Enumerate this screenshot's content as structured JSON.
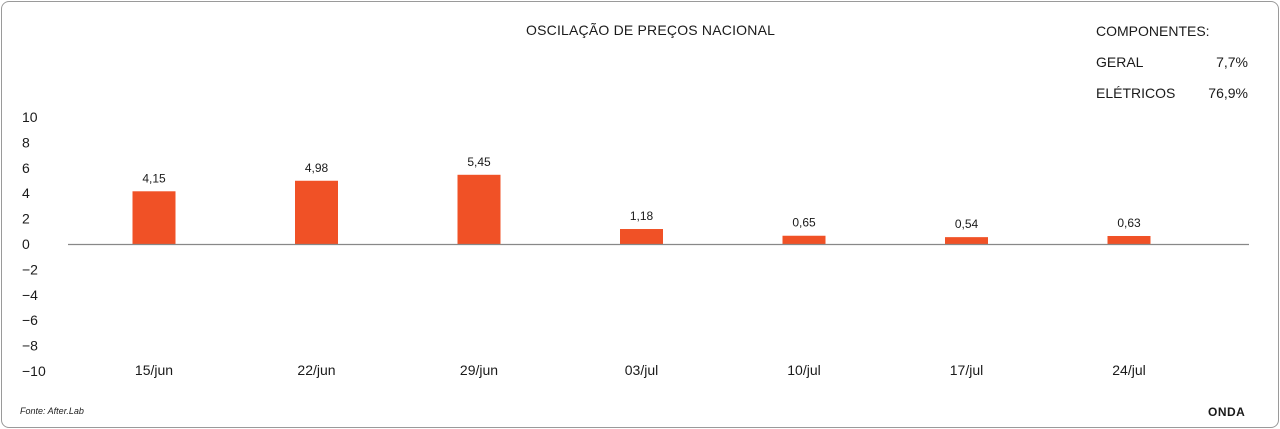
{
  "chart_data": {
    "type": "bar",
    "title": "OSCILAÇÃO DE PREÇOS NACIONAL",
    "categories": [
      "15/jun",
      "22/jun",
      "29/jun",
      "03/jul",
      "10/jul",
      "17/jul",
      "24/jul"
    ],
    "series": [
      {
        "values": [
          4.15,
          4.98,
          5.45,
          1.18,
          0.65,
          0.54,
          0.63
        ]
      }
    ],
    "data_labels": [
      "4,15",
      "4,98",
      "5,45",
      "1,18",
      "0,65",
      "0,54",
      "0,63"
    ],
    "ylim": [
      -10,
      10
    ],
    "yticks": [
      10,
      8,
      6,
      4,
      2,
      0,
      -2,
      -4,
      -6,
      -8,
      -10
    ],
    "ytick_labels": [
      "10",
      "8",
      "6",
      "4",
      "2",
      "0",
      "−2",
      "−4",
      "−6",
      "−8",
      "−10"
    ],
    "grid": false,
    "bar_color": "#f05126",
    "axis_color": "#888888"
  },
  "components": {
    "heading": "COMPONENTES:",
    "items": [
      {
        "label": "GERAL",
        "value": "7,7%"
      },
      {
        "label": "ELÉTRICOS",
        "value": "76,9%"
      }
    ]
  },
  "footer": {
    "source": "Fonte: After.Lab",
    "brand": "ONDA"
  }
}
